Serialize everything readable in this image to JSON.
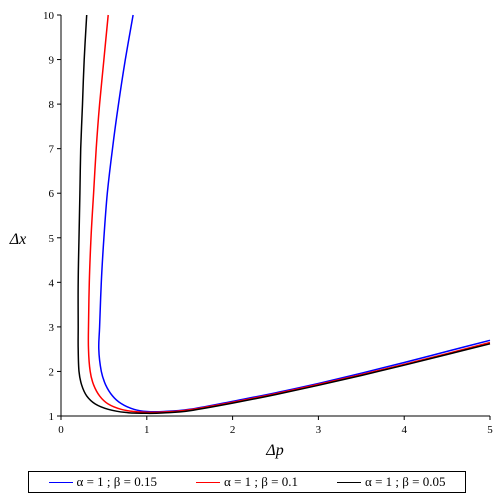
{
  "chart_data": {
    "type": "line",
    "xlabel": "Δp",
    "ylabel": "Δx",
    "xlim": [
      0,
      5
    ],
    "ylim": [
      1,
      10
    ],
    "x_ticks": [
      0,
      1,
      2,
      3,
      4,
      5
    ],
    "y_ticks": [
      1,
      2,
      3,
      4,
      5,
      6,
      7,
      8,
      9,
      10
    ],
    "x_tick_labels": [
      "0",
      "1",
      "2",
      "3",
      "4",
      "5"
    ],
    "y_tick_labels": [
      "1",
      "2",
      "3",
      "4",
      "5",
      "6",
      "7",
      "8",
      "9",
      "10"
    ],
    "legend_position": "bottom",
    "series": [
      {
        "name": "α = 1 ; β = 0.15",
        "color": "#0000ff",
        "points": [
          [
            0.84,
            10
          ],
          [
            0.75,
            9
          ],
          [
            0.67,
            8
          ],
          [
            0.6,
            7
          ],
          [
            0.54,
            6
          ],
          [
            0.5,
            5
          ],
          [
            0.47,
            4
          ],
          [
            0.45,
            3
          ],
          [
            0.44,
            2.5
          ],
          [
            0.47,
            2
          ],
          [
            0.52,
            1.7
          ],
          [
            0.6,
            1.45
          ],
          [
            0.7,
            1.28
          ],
          [
            0.85,
            1.15
          ],
          [
            1.0,
            1.1
          ],
          [
            1.2,
            1.1
          ],
          [
            1.5,
            1.15
          ],
          [
            2.0,
            1.33
          ],
          [
            2.5,
            1.52
          ],
          [
            3.0,
            1.73
          ],
          [
            3.5,
            1.96
          ],
          [
            4.0,
            2.2
          ],
          [
            4.5,
            2.45
          ],
          [
            5.0,
            2.7
          ]
        ]
      },
      {
        "name": "α = 1 ; β = 0.1",
        "color": "#ff0000",
        "points": [
          [
            0.55,
            10
          ],
          [
            0.5,
            9
          ],
          [
            0.45,
            8
          ],
          [
            0.41,
            7
          ],
          [
            0.38,
            6
          ],
          [
            0.35,
            5
          ],
          [
            0.33,
            4
          ],
          [
            0.32,
            3
          ],
          [
            0.32,
            2.5
          ],
          [
            0.34,
            2
          ],
          [
            0.38,
            1.7
          ],
          [
            0.45,
            1.45
          ],
          [
            0.55,
            1.27
          ],
          [
            0.7,
            1.15
          ],
          [
            0.85,
            1.1
          ],
          [
            1.05,
            1.08
          ],
          [
            1.3,
            1.1
          ],
          [
            1.5,
            1.14
          ],
          [
            2.0,
            1.31
          ],
          [
            2.5,
            1.5
          ],
          [
            3.0,
            1.71
          ],
          [
            3.5,
            1.93
          ],
          [
            4.0,
            2.16
          ],
          [
            4.5,
            2.4
          ],
          [
            5.0,
            2.65
          ]
        ]
      },
      {
        "name": "α = 1 ; β = 0.05",
        "color": "#000000",
        "points": [
          [
            0.3,
            10
          ],
          [
            0.27,
            9
          ],
          [
            0.25,
            8
          ],
          [
            0.23,
            7
          ],
          [
            0.22,
            6
          ],
          [
            0.21,
            5
          ],
          [
            0.2,
            4
          ],
          [
            0.2,
            3
          ],
          [
            0.2,
            2.5
          ],
          [
            0.21,
            2
          ],
          [
            0.24,
            1.7
          ],
          [
            0.3,
            1.45
          ],
          [
            0.4,
            1.27
          ],
          [
            0.55,
            1.15
          ],
          [
            0.75,
            1.08
          ],
          [
            1.0,
            1.06
          ],
          [
            1.2,
            1.07
          ],
          [
            1.5,
            1.12
          ],
          [
            2.0,
            1.29
          ],
          [
            2.5,
            1.48
          ],
          [
            3.0,
            1.69
          ],
          [
            3.5,
            1.91
          ],
          [
            4.0,
            2.14
          ],
          [
            4.5,
            2.38
          ],
          [
            5.0,
            2.62
          ]
        ]
      }
    ]
  }
}
